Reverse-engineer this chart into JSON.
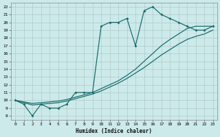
{
  "xlabel": "Humidex (Indice chaleur)",
  "bg_color": "#cceaea",
  "grid_color": "#b0c8c8",
  "line_color": "#1a6b6b",
  "xlim": [
    -0.5,
    23.5
  ],
  "ylim": [
    7.5,
    22.5
  ],
  "xticks": [
    0,
    1,
    2,
    3,
    4,
    5,
    6,
    7,
    8,
    9,
    10,
    11,
    12,
    13,
    14,
    15,
    16,
    17,
    18,
    19,
    20,
    21,
    22,
    23
  ],
  "yticks": [
    8,
    9,
    10,
    11,
    12,
    13,
    14,
    15,
    16,
    17,
    18,
    19,
    20,
    21,
    22
  ],
  "line1_x": [
    0,
    1,
    2,
    3,
    4,
    5,
    6,
    7,
    8,
    9,
    10,
    11,
    12,
    13,
    14,
    15,
    16,
    17,
    18,
    19,
    20,
    21,
    22,
    23
  ],
  "line1_y": [
    10,
    9.5,
    8.0,
    9.5,
    9.0,
    9.0,
    9.5,
    11.0,
    11.0,
    11.0,
    19.5,
    20.0,
    20.0,
    20.5,
    17.0,
    21.5,
    22.0,
    21.0,
    20.5,
    20.0,
    19.5,
    19.0,
    19.0,
    19.5
  ],
  "line2_x": [
    0,
    1,
    2,
    3,
    4,
    5,
    6,
    7,
    8,
    9,
    10,
    11,
    12,
    13,
    14,
    15,
    16,
    17,
    18,
    19,
    20,
    21,
    22,
    23
  ],
  "line2_y": [
    10,
    9.8,
    9.6,
    9.7,
    9.8,
    9.9,
    10.1,
    10.4,
    10.7,
    11.0,
    11.5,
    12.0,
    12.5,
    13.2,
    14.0,
    15.0,
    16.0,
    17.0,
    17.8,
    18.5,
    19.2,
    19.5,
    19.5,
    19.5
  ],
  "line3_x": [
    0,
    1,
    2,
    3,
    4,
    5,
    6,
    7,
    8,
    9,
    10,
    11,
    12,
    13,
    14,
    15,
    16,
    17,
    18,
    19,
    20,
    21,
    22,
    23
  ],
  "line3_y": [
    10,
    9.7,
    9.4,
    9.5,
    9.6,
    9.7,
    9.9,
    10.2,
    10.5,
    10.8,
    11.2,
    11.7,
    12.2,
    12.8,
    13.5,
    14.2,
    15.0,
    15.8,
    16.5,
    17.2,
    17.8,
    18.2,
    18.5,
    19.0
  ]
}
